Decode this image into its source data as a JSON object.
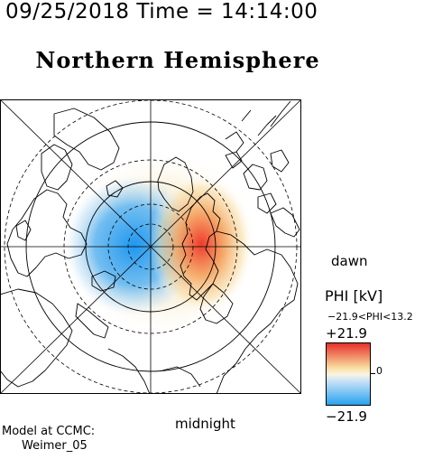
{
  "header": {
    "time_text": "09/25/2018 Time = 14:14:00"
  },
  "title": "Northern Hemisphere",
  "map": {
    "projection": "polar",
    "labels": {
      "dawn": "dawn",
      "midnight": "midnight"
    },
    "potential_cells": [
      {
        "name": "negative-cell",
        "sign": "negative",
        "color": "#1e96f0"
      },
      {
        "name": "positive-cell",
        "sign": "positive",
        "color": "#ef3b2c"
      }
    ]
  },
  "colorbar": {
    "title": "PHI [kV]",
    "range_text": "−21.9<PHI<13.2",
    "max_label": "+21.9",
    "min_label": "−21.9",
    "zero_label": "0",
    "colors": {
      "high": "#e8302a",
      "mid": "#fbf3df",
      "low": "#27a3f0"
    }
  },
  "credit": {
    "line1": "Model at CCMC:",
    "line2": "Weimer_05"
  }
}
